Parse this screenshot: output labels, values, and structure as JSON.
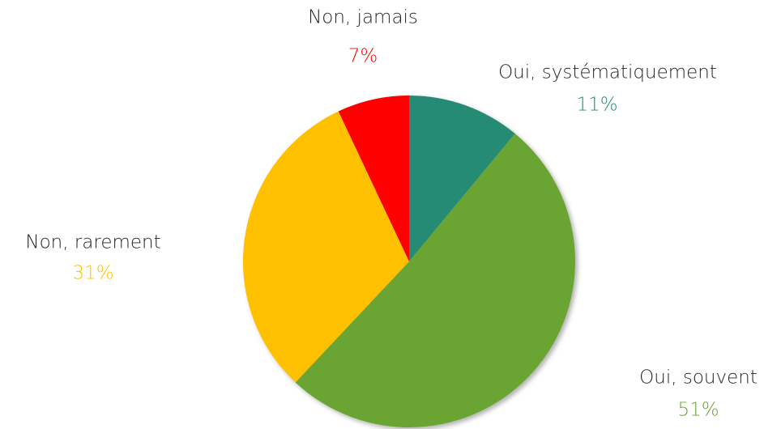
{
  "chart_data": {
    "type": "pie",
    "categories": [
      "Oui, systématiquement",
      "Oui, souvent",
      "Non, rarement",
      "Non, jamais"
    ],
    "values": [
      11,
      51,
      31,
      7
    ],
    "value_labels": [
      "11%",
      "51%",
      "31%",
      "7%"
    ],
    "colors": [
      "#268b74",
      "#6aa431",
      "#ffc000",
      "#ff0000"
    ]
  }
}
